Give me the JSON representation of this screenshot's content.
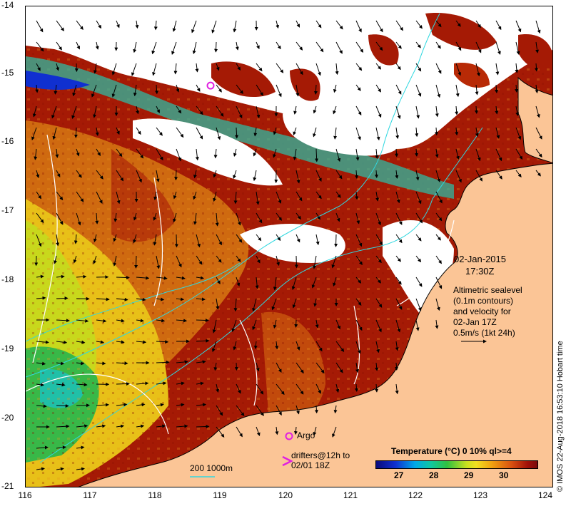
{
  "map": {
    "date": "02-Jan-2015",
    "time": "17:30Z",
    "altimetry_note": [
      "Altimetric sealevel",
      "(0.1m contours)",
      "and velocity for",
      "02-Jan 17Z",
      "0.5m/s (1kt 24h)"
    ],
    "argo_label": "Argo",
    "drifters_label": [
      "drifters@12h to",
      "02/01 18Z"
    ],
    "bathymetry_label": "200  1000m",
    "credit": "© IMOS 22-Aug-2018 16:53:10 Hobart time",
    "lon_ticks": [
      "116",
      "117",
      "118",
      "119",
      "120",
      "121",
      "122",
      "123",
      "124"
    ],
    "lat_ticks": [
      "-14",
      "-15",
      "-16",
      "-17",
      "-18",
      "-19",
      "-20",
      "-21"
    ],
    "colorbar": {
      "title": "Temperature (°C) 0 10% ql>=4",
      "ticks": [
        "27",
        "28",
        "29",
        "30"
      ]
    },
    "argo_float": {
      "lon": 118.8,
      "lat": -15.15
    }
  },
  "colors": {
    "land": "#fbc596",
    "cloud": "#ffffff",
    "warm": "#a51a05",
    "mid": "#cf6a10",
    "cool": "#e8c018",
    "cold": "#38b848",
    "contour": "#30d8e0",
    "argo": "#e020e0"
  }
}
